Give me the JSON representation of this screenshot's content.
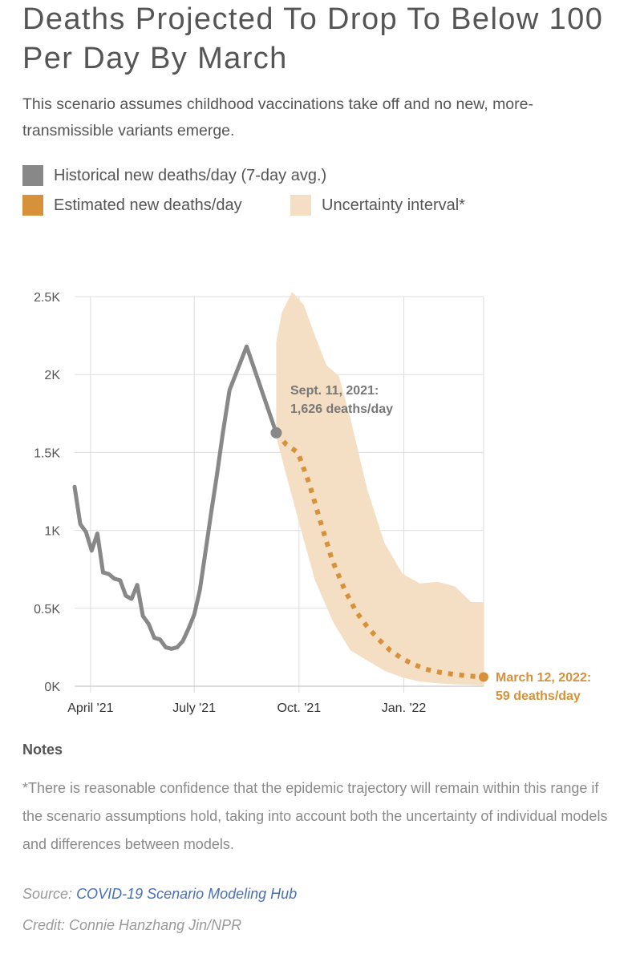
{
  "title": "Deaths Projected To Drop To Below 100 Per Day By March",
  "subtitle": "This scenario assumes childhood vaccinations take off and no new, more-transmissible variants emerge.",
  "legend": [
    {
      "label": "Historical new deaths/day (7-day avg.)",
      "color": "#888888"
    },
    {
      "label": "Estimated new deaths/day",
      "color": "#d6913a"
    },
    {
      "label": "Uncertainty interval*",
      "color": "#f5dfc4"
    }
  ],
  "annotations": {
    "start": {
      "line1": "Sept. 11, 2021:",
      "line2": "1,626 deaths/day"
    },
    "end": {
      "line1": "March 12, 2022:",
      "line2": "59 deaths/day"
    }
  },
  "notes": {
    "heading": "Notes",
    "body": "*There is reasonable confidence that the epidemic trajectory will remain within this range if the scenario assumptions hold, taking into account both the uncertainty of individual models and differences between models."
  },
  "source": {
    "prefix": "Source:",
    "link_text": "COVID-19 Scenario Modeling Hub"
  },
  "credit": "Credit: Connie Hanzhang Jin/NPR",
  "colors": {
    "historical": "#888888",
    "estimated": "#d6913a",
    "band": "#f5dfc4",
    "grid": "#dddddd"
  },
  "chart_data": {
    "type": "line",
    "title": "Deaths Projected To Drop To Below 100 Per Day By March",
    "xlabel": "",
    "ylabel": "",
    "x_range": [
      "2021-03-18",
      "2022-03-12"
    ],
    "ylim": [
      0,
      2500
    ],
    "y_ticks": [
      0,
      500,
      1000,
      1500,
      2000,
      2500
    ],
    "y_tick_labels": [
      "0K",
      "0.5K",
      "1K",
      "1.5K",
      "2K",
      "2.5K"
    ],
    "x_ticks": [
      "2021-04-01",
      "2021-07-01",
      "2021-10-01",
      "2022-01-01"
    ],
    "x_tick_labels": [
      "April '21",
      "July '21",
      "Oct. '21",
      "Jan. '22"
    ],
    "grid": true,
    "series": [
      {
        "name": "Historical new deaths/day (7-day avg.)",
        "style": "solid",
        "points": [
          [
            "2021-03-18",
            1280
          ],
          [
            "2021-03-23",
            1040
          ],
          [
            "2021-03-28",
            990
          ],
          [
            "2021-04-02",
            870
          ],
          [
            "2021-04-07",
            980
          ],
          [
            "2021-04-12",
            730
          ],
          [
            "2021-04-17",
            720
          ],
          [
            "2021-04-22",
            690
          ],
          [
            "2021-04-27",
            680
          ],
          [
            "2021-05-02",
            580
          ],
          [
            "2021-05-07",
            560
          ],
          [
            "2021-05-12",
            650
          ],
          [
            "2021-05-17",
            450
          ],
          [
            "2021-05-22",
            400
          ],
          [
            "2021-05-27",
            310
          ],
          [
            "2021-06-01",
            300
          ],
          [
            "2021-06-06",
            250
          ],
          [
            "2021-06-11",
            240
          ],
          [
            "2021-06-16",
            250
          ],
          [
            "2021-06-21",
            290
          ],
          [
            "2021-06-26",
            370
          ],
          [
            "2021-07-01",
            460
          ],
          [
            "2021-07-06",
            620
          ],
          [
            "2021-07-11",
            870
          ],
          [
            "2021-07-16",
            1120
          ],
          [
            "2021-07-21",
            1360
          ],
          [
            "2021-07-26",
            1620
          ],
          [
            "2021-08-01",
            1900
          ],
          [
            "2021-08-16",
            2180
          ],
          [
            "2021-09-11",
            1626
          ]
        ]
      },
      {
        "name": "Estimated new deaths/day",
        "style": "dotted",
        "points": [
          [
            "2021-09-11",
            1626
          ],
          [
            "2021-09-20",
            1550
          ],
          [
            "2021-09-30",
            1500
          ],
          [
            "2021-10-10",
            1300
          ],
          [
            "2021-10-20",
            1050
          ],
          [
            "2021-10-30",
            810
          ],
          [
            "2021-11-10",
            620
          ],
          [
            "2021-11-20",
            480
          ],
          [
            "2021-11-30",
            380
          ],
          [
            "2021-12-10",
            300
          ],
          [
            "2021-12-20",
            230
          ],
          [
            "2021-12-31",
            175
          ],
          [
            "2022-01-10",
            140
          ],
          [
            "2022-01-20",
            110
          ],
          [
            "2022-02-01",
            90
          ],
          [
            "2022-02-15",
            75
          ],
          [
            "2022-03-01",
            65
          ],
          [
            "2022-03-12",
            59
          ]
        ]
      },
      {
        "name": "Uncertainty interval*",
        "style": "band",
        "upper": [
          [
            "2021-09-11",
            2210
          ],
          [
            "2021-09-16",
            2400
          ],
          [
            "2021-09-25",
            2600
          ],
          [
            "2021-10-05",
            2450
          ],
          [
            "2021-10-15",
            2250
          ],
          [
            "2021-10-25",
            2060
          ],
          [
            "2021-11-05",
            1990
          ],
          [
            "2021-11-15",
            1720
          ],
          [
            "2021-11-30",
            1260
          ],
          [
            "2021-12-15",
            920
          ],
          [
            "2021-12-31",
            720
          ],
          [
            "2022-01-15",
            660
          ],
          [
            "2022-01-31",
            670
          ],
          [
            "2022-02-15",
            640
          ],
          [
            "2022-03-01",
            540
          ],
          [
            "2022-03-12",
            540
          ]
        ],
        "lower": [
          [
            "2021-09-11",
            1600
          ],
          [
            "2021-09-20",
            1350
          ],
          [
            "2021-10-01",
            1050
          ],
          [
            "2021-10-15",
            680
          ],
          [
            "2021-10-31",
            410
          ],
          [
            "2021-11-15",
            230
          ],
          [
            "2021-12-01",
            160
          ],
          [
            "2021-12-15",
            100
          ],
          [
            "2021-12-31",
            55
          ],
          [
            "2022-01-15",
            30
          ],
          [
            "2022-02-01",
            18
          ],
          [
            "2022-02-15",
            12
          ],
          [
            "2022-03-01",
            8
          ],
          [
            "2022-03-12",
            5
          ]
        ]
      }
    ]
  }
}
